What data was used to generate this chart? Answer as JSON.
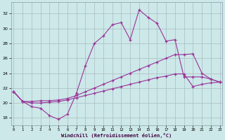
{
  "background_color": "#cce8e8",
  "grid_color": "#aabbc4",
  "line_color": "#993399",
  "xlabel": "Windchill (Refroidissement éolien,°C)",
  "x_ticks": [
    0,
    1,
    2,
    3,
    4,
    5,
    6,
    7,
    8,
    9,
    10,
    11,
    12,
    13,
    14,
    15,
    16,
    17,
    18,
    19,
    20,
    21,
    22,
    23
  ],
  "y_ticks": [
    18,
    20,
    22,
    24,
    26,
    28,
    30,
    32
  ],
  "ylim": [
    17.0,
    33.5
  ],
  "xlim": [
    -0.3,
    23.3
  ],
  "series1_x": [
    0,
    1,
    2,
    3,
    4,
    5,
    6,
    7,
    8,
    9,
    10,
    11,
    12,
    13,
    14,
    15,
    16,
    17,
    18,
    19,
    20,
    21,
    22,
    23
  ],
  "series1_y": [
    21.5,
    20.2,
    19.5,
    19.3,
    18.3,
    17.8,
    18.5,
    21.3,
    25.0,
    28.0,
    29.0,
    30.5,
    30.8,
    28.5,
    32.5,
    31.5,
    30.7,
    28.3,
    28.5,
    23.5,
    23.5,
    23.5,
    23.2,
    22.8
  ],
  "series2_x": [
    0,
    1,
    2,
    3,
    4,
    5,
    6,
    7,
    8,
    9,
    10,
    11,
    12,
    13,
    14,
    15,
    16,
    17,
    18,
    19,
    20,
    21,
    22,
    23
  ],
  "series2_y": [
    21.5,
    20.2,
    20.2,
    20.3,
    20.3,
    20.4,
    20.6,
    21.0,
    21.5,
    22.0,
    22.5,
    23.0,
    23.5,
    24.0,
    24.5,
    25.0,
    25.5,
    26.0,
    26.5,
    26.5,
    26.6,
    24.0,
    23.2,
    22.8
  ],
  "series3_x": [
    0,
    1,
    2,
    3,
    4,
    5,
    6,
    7,
    8,
    9,
    10,
    11,
    12,
    13,
    14,
    15,
    16,
    17,
    18,
    19,
    20,
    21,
    22,
    23
  ],
  "series3_y": [
    21.5,
    20.2,
    20.0,
    20.0,
    20.1,
    20.2,
    20.4,
    20.7,
    21.0,
    21.3,
    21.6,
    21.9,
    22.2,
    22.5,
    22.8,
    23.1,
    23.4,
    23.6,
    23.9,
    23.9,
    22.2,
    22.5,
    22.7,
    22.8
  ]
}
